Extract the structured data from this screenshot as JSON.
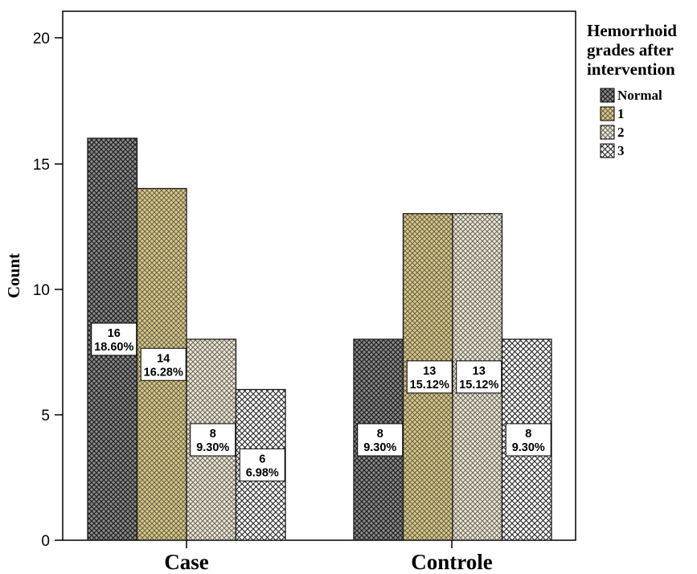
{
  "chart_data": {
    "type": "bar",
    "title": "",
    "xlabel": "",
    "ylabel": "Count",
    "ylim": [
      0,
      20
    ],
    "yticks": [
      "0",
      "5",
      "10",
      "15",
      "20"
    ],
    "categories": [
      "Case",
      "Controle"
    ],
    "legend": {
      "title_lines": [
        "Hemorrhoid",
        "grades after",
        "intervention"
      ],
      "position": "right"
    },
    "series": [
      {
        "name": "Normal",
        "values": [
          16,
          8
        ],
        "labels": [
          "16|18.60%",
          "8|9.30%"
        ],
        "fill": "#8c8c8c",
        "stroke": "#2a2a2a"
      },
      {
        "name": "1",
        "values": [
          14,
          13
        ],
        "labels": [
          "14|16.28%",
          "13|15.12%"
        ],
        "fill": "#d2c58c",
        "stroke": "#555555"
      },
      {
        "name": "2",
        "values": [
          8,
          13
        ],
        "labels": [
          "8|9.30%",
          "13|15.12%"
        ],
        "fill": "#ece3c8",
        "stroke": "#555555"
      },
      {
        "name": "3",
        "values": [
          6,
          8
        ],
        "labels": [
          "6|6.98%",
          "8|9.30%"
        ],
        "fill": "#ffffff",
        "stroke": "#333333"
      }
    ]
  }
}
